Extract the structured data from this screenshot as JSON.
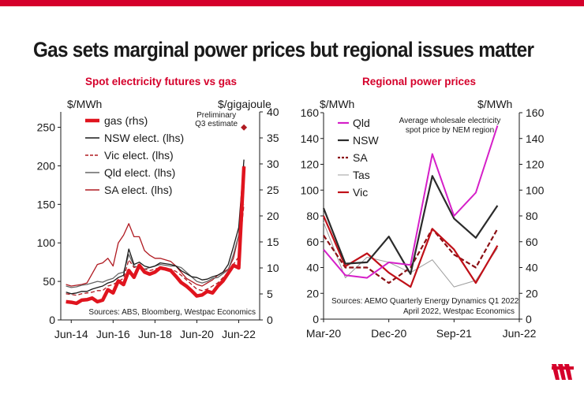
{
  "headline": "Gas sets marginal power prices but regional issues matter",
  "charts": [
    {
      "title": "Spot electricity futures vs gas",
      "left_unit": "$/MWh",
      "right_unit": "$/gigajoule",
      "annotation": "Preliminary\nQ3 estimate",
      "source": "Sources: ABS, Bloomberg, Westpac Economics",
      "x_tick_labels": [
        "Jun-14",
        "Jun-16",
        "Jun-18",
        "Jun-20",
        "Jun-22"
      ],
      "y_left_ticks": [
        0,
        50,
        100,
        150,
        200,
        250
      ],
      "y_right_ticks": [
        0,
        5,
        10,
        15,
        20,
        25,
        30,
        35,
        40
      ]
    },
    {
      "title": "Regional power prices",
      "left_unit": "$/MWh",
      "right_unit": "$/MWh",
      "annotation": "Average wholesale electricity\nspot price by NEM region",
      "source": "Sources: AEMO Quarterly Energy Dynamics Q1 2022\nApril 2022, Westpac Economics",
      "x_tick_labels": [
        "Mar-20",
        "Dec-20",
        "Sep-21",
        "Jun-22"
      ],
      "y_left_ticks": [
        0,
        20,
        40,
        60,
        80,
        100,
        120,
        140,
        160
      ],
      "y_right_ticks": [
        0,
        20,
        40,
        60,
        80,
        100,
        120,
        140,
        160
      ]
    }
  ],
  "chart_data": [
    {
      "type": "line",
      "title": "Spot electricity futures vs gas",
      "xlabel": "",
      "ylabel": "$/MWh",
      "y2label": "$/gigajoule",
      "xlim": [
        "2013-12",
        "2023-06"
      ],
      "ylim": [
        0,
        270
      ],
      "y2lim": [
        0,
        40
      ],
      "grid": false,
      "legend_position": "top-left",
      "x": [
        "2014-03",
        "2014-06",
        "2014-09",
        "2014-12",
        "2015-03",
        "2015-06",
        "2015-09",
        "2015-12",
        "2016-03",
        "2016-06",
        "2016-09",
        "2016-12",
        "2017-03",
        "2017-06",
        "2017-09",
        "2017-12",
        "2018-03",
        "2018-06",
        "2018-09",
        "2018-12",
        "2019-03",
        "2019-06",
        "2019-09",
        "2019-12",
        "2020-03",
        "2020-06",
        "2020-09",
        "2020-12",
        "2021-03",
        "2021-06",
        "2021-09",
        "2021-12",
        "2022-03",
        "2022-06",
        "2022-09"
      ],
      "series": [
        {
          "name": "gas (rhs)",
          "axis": "right",
          "color": "#e0141e",
          "values": [
            3.5,
            3.4,
            3.2,
            3.8,
            3.9,
            4.2,
            3.5,
            3.8,
            5.8,
            5.2,
            7.5,
            6.8,
            9.5,
            8.2,
            10.5,
            9.2,
            8.8,
            9.2,
            10.0,
            9.8,
            9.5,
            8.4,
            7.2,
            6.5,
            5.6,
            4.6,
            4.8,
            5.5,
            5.2,
            6.5,
            7.5,
            9.0,
            10.5,
            10.0,
            29.5
          ]
        },
        {
          "name": "NSW elect. (lhs)",
          "axis": "left",
          "color": "#1a1a1a",
          "values": [
            36,
            34,
            35,
            37,
            37,
            40,
            42,
            44,
            48,
            50,
            55,
            58,
            92,
            72,
            75,
            70,
            68,
            70,
            74,
            73,
            72,
            70,
            64,
            60,
            56,
            55,
            52,
            53,
            56,
            58,
            62,
            72,
            95,
            120,
            208
          ]
        },
        {
          "name": "Vic elect. (lhs)",
          "axis": "left",
          "color": "#b01a21",
          "dashed": true,
          "values": [
            34,
            33,
            32,
            34,
            35,
            36,
            38,
            38,
            44,
            46,
            50,
            54,
            78,
            68,
            70,
            66,
            64,
            66,
            68,
            67,
            66,
            63,
            58,
            52,
            46,
            40,
            38,
            40,
            44,
            48,
            55,
            62,
            72,
            82,
            150
          ]
        },
        {
          "name": "Qld elect. (lhs)",
          "axis": "left",
          "color": "#666666",
          "values": [
            44,
            42,
            43,
            45,
            46,
            48,
            50,
            49,
            52,
            54,
            60,
            62,
            85,
            70,
            68,
            66,
            68,
            70,
            72,
            71,
            70,
            70,
            68,
            62,
            56,
            50,
            48,
            50,
            54,
            55,
            60,
            65,
            85,
            110,
            190
          ]
        },
        {
          "name": "SA elect. (lhs)",
          "axis": "left",
          "color": "#b01a21",
          "values": [
            46,
            44,
            45,
            46,
            48,
            60,
            72,
            74,
            80,
            70,
            100,
            110,
            125,
            108,
            108,
            90,
            84,
            80,
            80,
            78,
            76,
            70,
            62,
            54,
            50,
            46,
            44,
            48,
            52,
            58,
            62,
            66,
            80,
            110,
            200
          ]
        }
      ],
      "markers": [
        {
          "x": "2022-09",
          "y2": 37,
          "label": "Preliminary\nQ3 estimate"
        }
      ]
    },
    {
      "type": "line",
      "title": "Regional power prices",
      "xlabel": "",
      "ylabel": "$/MWh",
      "y2label": "$/MWh",
      "xlim": [
        "2020-03",
        "2022-06"
      ],
      "ylim": [
        0,
        160
      ],
      "grid": false,
      "legend_position": "top-left",
      "x": [
        "2020-03",
        "2020-06",
        "2020-09",
        "2020-12",
        "2021-03",
        "2021-06",
        "2021-09",
        "2021-12",
        "2022-03"
      ],
      "series": [
        {
          "name": "Qld",
          "color": "#d51fc8",
          "values": [
            54,
            34,
            32,
            44,
            42,
            128,
            80,
            98,
            150
          ]
        },
        {
          "name": "NSW",
          "color": "#2b2b2b",
          "values": [
            86,
            43,
            44,
            64,
            35,
            111,
            78,
            63,
            88
          ]
        },
        {
          "name": "SA",
          "color": "#8b0f14",
          "dashed": true,
          "values": [
            65,
            40,
            40,
            28,
            40,
            70,
            50,
            40,
            70
          ]
        },
        {
          "name": "Tas",
          "color": "#9e9e9e",
          "values": [
            75,
            32,
            48,
            44,
            36,
            46,
            25,
            30,
            55
          ]
        },
        {
          "name": "Vic",
          "color": "#c01018",
          "values": [
            80,
            41,
            51,
            36,
            25,
            70,
            54,
            28,
            57
          ]
        }
      ]
    }
  ]
}
